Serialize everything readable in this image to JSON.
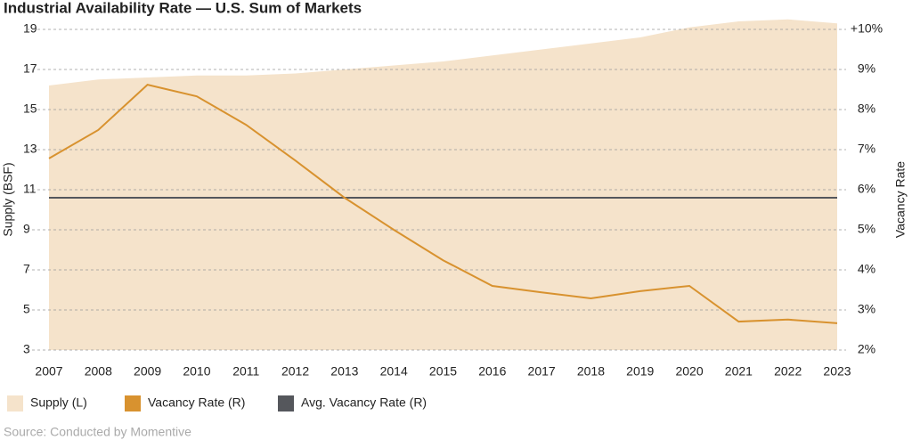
{
  "chart_data": {
    "type": "area-line",
    "title": "Industrial Availability Rate — U.S. Sum of Markets",
    "source": "Source: Conducted by Momentive",
    "ylabel": "Supply (BSF)",
    "y2label": "Vacancy Rate",
    "categories": [
      "2007",
      "2008",
      "2009",
      "2010",
      "2011",
      "2012",
      "2013",
      "2014",
      "2015",
      "2016",
      "2017",
      "2018",
      "2019",
      "2020",
      "2021",
      "2022",
      "2023"
    ],
    "series": [
      {
        "name": "Supply (L)",
        "color": "#f5e3cb",
        "axis": "y",
        "values": [
          16.2,
          16.5,
          16.6,
          16.7,
          16.7,
          16.8,
          17.0,
          17.2,
          17.4,
          17.7,
          18.0,
          18.3,
          18.6,
          19.1,
          19.4,
          19.5,
          19.3
        ]
      },
      {
        "name": "Vacancy Rate (R)",
        "color": "#d8922f",
        "axis": "y2",
        "values": [
          6.78,
          7.49,
          8.62,
          8.33,
          7.62,
          6.73,
          5.8,
          5.0,
          4.24,
          3.6,
          3.44,
          3.29,
          3.47,
          3.6,
          2.71,
          2.76,
          2.67
        ]
      }
    ],
    "reference_line": {
      "name": "Avg. Vacancy Rate (R)",
      "color": "#55575c",
      "axis": "y2",
      "value": 5.8
    },
    "ylim": [
      3,
      19
    ],
    "yticks": [
      3,
      5,
      7,
      9,
      11,
      13,
      15,
      17,
      19
    ],
    "y2lim": [
      2,
      10
    ],
    "y2ticks": [
      {
        "value": 2,
        "label": "2%"
      },
      {
        "value": 3,
        "label": "3%"
      },
      {
        "value": 4,
        "label": "4%"
      },
      {
        "value": 5,
        "label": "5%"
      },
      {
        "value": 6,
        "label": "6%"
      },
      {
        "value": 7,
        "label": "7%"
      },
      {
        "value": 8,
        "label": "8%"
      },
      {
        "value": 9,
        "label": "9%"
      },
      {
        "value": 10,
        "label": "+10%"
      }
    ],
    "grid": true
  }
}
